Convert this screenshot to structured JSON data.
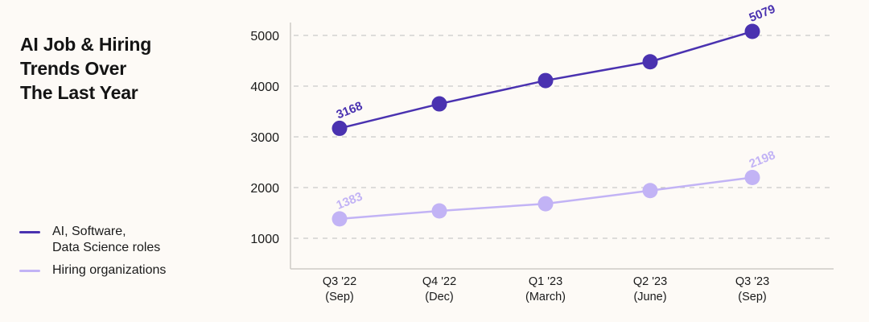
{
  "title_lines": [
    "AI Job & Hiring",
    "Trends Over",
    "The Last Year"
  ],
  "legend": [
    {
      "label_lines": [
        "AI, Software,",
        "Data Science roles"
      ],
      "color": "#4a32b0"
    },
    {
      "label_lines": [
        "Hiring organizations"
      ],
      "color": "#c2b3f5"
    }
  ],
  "colors": {
    "background": "#fdfaf6",
    "series_dark": "#4a32b0",
    "series_light": "#c2b3f5",
    "grid": "#bdbdbd",
    "axis": "#cfcbc6"
  },
  "chart_data": {
    "type": "line",
    "title": "AI Job & Hiring Trends Over The Last Year",
    "xlabel": "",
    "ylabel": "",
    "categories": [
      "Q3 '22 (Sep)",
      "Q4 '22 (Dec)",
      "Q1 '23 (March)",
      "Q2 '23 (June)",
      "Q3 '23 (Sep)"
    ],
    "x_tick_lines": [
      [
        "Q3 '22",
        "(Sep)"
      ],
      [
        "Q4 '22",
        "(Dec)"
      ],
      [
        "Q1 '23",
        "(March)"
      ],
      [
        "Q2 '23",
        "(June)"
      ],
      [
        "Q3 '23",
        "(Sep)"
      ]
    ],
    "yticks": [
      1000,
      2000,
      3000,
      4000,
      5000
    ],
    "ylim": [
      300,
      5700
    ],
    "grid": true,
    "legend_position": "left",
    "series": [
      {
        "name": "AI, Software, Data Science roles",
        "values": [
          3168,
          3650,
          4110,
          4480,
          5079
        ],
        "labeled_points": {
          "0": "3168",
          "4": "5079"
        }
      },
      {
        "name": "Hiring organizations",
        "values": [
          1383,
          1540,
          1680,
          1940,
          2198
        ],
        "labeled_points": {
          "0": "1383",
          "4": "2198"
        }
      }
    ]
  }
}
